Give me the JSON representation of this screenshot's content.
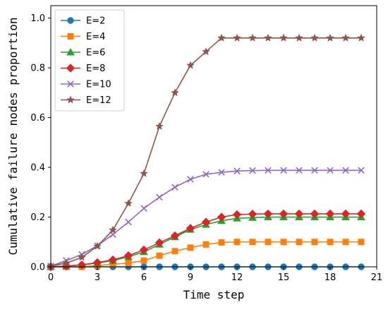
{
  "chart_data": {
    "type": "line",
    "title": "",
    "xlabel": "Time step",
    "ylabel": "Cumulative failure nodes proportion",
    "xlim": [
      0,
      21
    ],
    "ylim": [
      0,
      1.05
    ],
    "xticks": [
      0,
      3,
      6,
      9,
      12,
      15,
      18,
      21
    ],
    "yticks": [
      0.0,
      0.2,
      0.4,
      0.6,
      0.8,
      1.0
    ],
    "xtick_labels": [
      "0",
      "3",
      "6",
      "9",
      "12",
      "15",
      "18",
      "21"
    ],
    "ytick_labels": [
      "0.0",
      "0.2",
      "0.4",
      "0.6",
      "0.8",
      "1.0"
    ],
    "grid": false,
    "legend_position": "top-left",
    "x": [
      0,
      1,
      2,
      3,
      4,
      5,
      6,
      7,
      8,
      9,
      10,
      11,
      12,
      13,
      14,
      15,
      16,
      17,
      18,
      19,
      20
    ],
    "series": [
      {
        "name": "E=2",
        "color": "#1f77b4",
        "marker": "circle",
        "values": [
          0.0,
          0.0,
          0.0,
          0.0,
          0.0,
          0.0,
          0.0,
          0.0,
          0.0,
          0.0,
          0.0,
          0.0,
          0.0,
          0.0,
          0.0,
          0.0,
          0.0,
          0.0,
          0.0,
          0.0,
          0.0
        ]
      },
      {
        "name": "E=4",
        "color": "#ff7f0e",
        "marker": "square",
        "values": [
          0.0,
          0.0,
          0.0,
          0.005,
          0.01,
          0.015,
          0.025,
          0.045,
          0.063,
          0.077,
          0.09,
          0.098,
          0.1,
          0.1,
          0.1,
          0.1,
          0.1,
          0.1,
          0.1,
          0.1,
          0.1
        ]
      },
      {
        "name": "E=6",
        "color": "#2ca02c",
        "marker": "triangle",
        "values": [
          0.0,
          0.003,
          0.008,
          0.015,
          0.025,
          0.04,
          0.06,
          0.09,
          0.12,
          0.15,
          0.17,
          0.185,
          0.195,
          0.198,
          0.2,
          0.2,
          0.2,
          0.2,
          0.2,
          0.2,
          0.2
        ]
      },
      {
        "name": "E=8",
        "color": "#d62728",
        "marker": "diamond",
        "values": [
          0.0,
          0.003,
          0.008,
          0.017,
          0.028,
          0.045,
          0.068,
          0.097,
          0.125,
          0.155,
          0.18,
          0.2,
          0.21,
          0.212,
          0.213,
          0.213,
          0.213,
          0.213,
          0.213,
          0.213,
          0.213
        ]
      },
      {
        "name": "E=10",
        "color": "#9467bd",
        "marker": "x",
        "values": [
          0.003,
          0.025,
          0.05,
          0.085,
          0.13,
          0.18,
          0.235,
          0.28,
          0.32,
          0.352,
          0.372,
          0.38,
          0.385,
          0.387,
          0.388,
          0.388,
          0.388,
          0.388,
          0.388,
          0.388,
          0.388
        ]
      },
      {
        "name": "E=12",
        "color": "#8c564b",
        "marker": "star",
        "values": [
          0.003,
          0.015,
          0.038,
          0.083,
          0.148,
          0.255,
          0.375,
          0.565,
          0.7,
          0.81,
          0.865,
          0.92,
          0.92,
          0.92,
          0.92,
          0.92,
          0.92,
          0.92,
          0.92,
          0.92,
          0.92
        ]
      }
    ]
  }
}
